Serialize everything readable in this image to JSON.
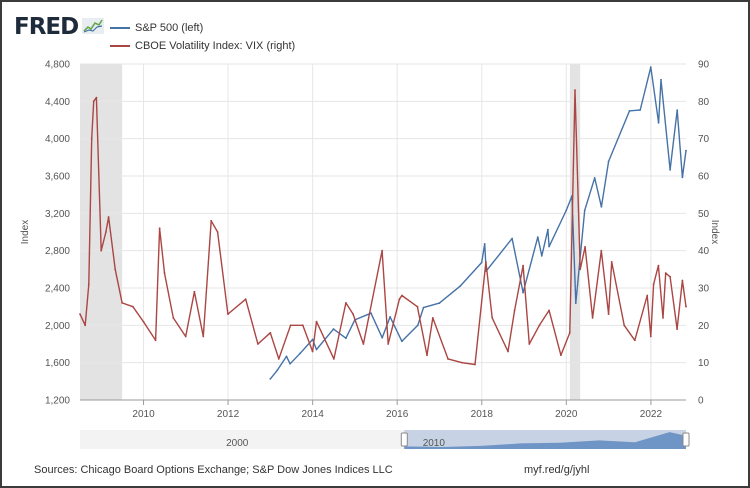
{
  "brand": {
    "name": "FRED",
    "logo_icon": "fred-chart-logo-icon"
  },
  "legend": [
    {
      "label": "S&P 500 (left)",
      "color": "#4572a7"
    },
    {
      "label": "CBOE Volatility Index: VIX (right)",
      "color": "#aa4643"
    }
  ],
  "footer": {
    "source": "Sources: Chicago Board Options Exchange; S&P Dow Jones Indices LLC",
    "link": "myf.red/g/jyhl"
  },
  "chart_data": {
    "type": "line",
    "xlim": [
      "2008-07-01",
      "2022-10-31"
    ],
    "x_ticks": [
      "2010",
      "2012",
      "2014",
      "2016",
      "2018",
      "2020",
      "2022"
    ],
    "left_axis": {
      "label": "Index",
      "lim": [
        1200,
        4800
      ],
      "ticks": [
        "1,200",
        "1,600",
        "2,000",
        "2,400",
        "2,800",
        "3,200",
        "3,600",
        "4,000",
        "4,400",
        "4,800"
      ]
    },
    "right_axis": {
      "label": "Index",
      "lim": [
        0,
        90
      ],
      "ticks": [
        "0",
        "10",
        "20",
        "30",
        "40",
        "50",
        "60",
        "70",
        "80",
        "90"
      ]
    },
    "grid": true,
    "recession_shading": [
      {
        "start": "2008-07-01",
        "end": "2009-06-30"
      },
      {
        "start": "2020-02-01",
        "end": "2020-04-30"
      }
    ],
    "series": [
      {
        "name": "S&P 500 (left)",
        "axis": "left",
        "color": "#4572a7",
        "points": [
          [
            "2012-12-31",
            1426
          ],
          [
            "2013-03-01",
            1518
          ],
          [
            "2013-05-20",
            1667
          ],
          [
            "2013-06-20",
            1588
          ],
          [
            "2013-09-15",
            1700
          ],
          [
            "2013-12-31",
            1848
          ],
          [
            "2014-02-03",
            1741
          ],
          [
            "2014-06-30",
            1960
          ],
          [
            "2014-10-15",
            1862
          ],
          [
            "2014-12-31",
            2058
          ],
          [
            "2015-05-20",
            2130
          ],
          [
            "2015-08-25",
            1867
          ],
          [
            "2015-11-01",
            2090
          ],
          [
            "2016-02-11",
            1829
          ],
          [
            "2016-06-27",
            2000
          ],
          [
            "2016-08-15",
            2190
          ],
          [
            "2016-12-31",
            2238
          ],
          [
            "2017-06-30",
            2423
          ],
          [
            "2017-12-31",
            2673
          ],
          [
            "2018-01-26",
            2872
          ],
          [
            "2018-02-08",
            2581
          ],
          [
            "2018-09-20",
            2930
          ],
          [
            "2018-12-24",
            2351
          ],
          [
            "2019-04-30",
            2945
          ],
          [
            "2019-06-03",
            2744
          ],
          [
            "2019-07-26",
            3025
          ],
          [
            "2019-08-05",
            2844
          ],
          [
            "2019-12-31",
            3230
          ],
          [
            "2020-02-19",
            3386
          ],
          [
            "2020-03-23",
            2237
          ],
          [
            "2020-06-08",
            3232
          ],
          [
            "2020-09-02",
            3580
          ],
          [
            "2020-10-30",
            3270
          ],
          [
            "2020-12-31",
            3756
          ],
          [
            "2021-06-30",
            4297
          ],
          [
            "2021-09-30",
            4307
          ],
          [
            "2021-12-31",
            4766
          ],
          [
            "2022-03-08",
            4170
          ],
          [
            "2022-03-29",
            4631
          ],
          [
            "2022-06-16",
            3666
          ],
          [
            "2022-08-16",
            4305
          ],
          [
            "2022-09-30",
            3585
          ],
          [
            "2022-10-31",
            3872
          ]
        ]
      },
      {
        "name": "CBOE Volatility Index: VIX (right)",
        "axis": "right",
        "color": "#aa4643",
        "points": [
          [
            "2008-07-01",
            23
          ],
          [
            "2008-08-15",
            20
          ],
          [
            "2008-09-15",
            31
          ],
          [
            "2008-10-10",
            70
          ],
          [
            "2008-10-27",
            80
          ],
          [
            "2008-11-20",
            81
          ],
          [
            "2008-12-31",
            40
          ],
          [
            "2009-02-10",
            45
          ],
          [
            "2009-03-05",
            49
          ],
          [
            "2009-05-01",
            35
          ],
          [
            "2009-06-30",
            26
          ],
          [
            "2009-10-01",
            25
          ],
          [
            "2009-12-31",
            21
          ],
          [
            "2010-04-15",
            16
          ],
          [
            "2010-05-20",
            46
          ],
          [
            "2010-07-01",
            34
          ],
          [
            "2010-09-15",
            22
          ],
          [
            "2010-12-31",
            17
          ],
          [
            "2011-03-16",
            29
          ],
          [
            "2011-06-01",
            17
          ],
          [
            "2011-08-08",
            48
          ],
          [
            "2011-10-03",
            45
          ],
          [
            "2011-12-31",
            23
          ],
          [
            "2012-06-01",
            27
          ],
          [
            "2012-09-15",
            15
          ],
          [
            "2012-12-31",
            18
          ],
          [
            "2013-03-14",
            11
          ],
          [
            "2013-06-24",
            20
          ],
          [
            "2013-10-08",
            20
          ],
          [
            "2013-12-31",
            13
          ],
          [
            "2014-02-03",
            21
          ],
          [
            "2014-07-03",
            11
          ],
          [
            "2014-10-15",
            26
          ],
          [
            "2014-12-16",
            23
          ],
          [
            "2015-03-15",
            15
          ],
          [
            "2015-08-24",
            40
          ],
          [
            "2015-10-15",
            15
          ],
          [
            "2016-01-20",
            27
          ],
          [
            "2016-02-11",
            28
          ],
          [
            "2016-06-24",
            25
          ],
          [
            "2016-09-15",
            12
          ],
          [
            "2016-11-04",
            22
          ],
          [
            "2017-03-15",
            11
          ],
          [
            "2017-07-15",
            10
          ],
          [
            "2017-11-03",
            9.5
          ],
          [
            "2018-02-05",
            37
          ],
          [
            "2018-04-01",
            22
          ],
          [
            "2018-08-15",
            13
          ],
          [
            "2018-10-11",
            24
          ],
          [
            "2018-12-24",
            36
          ],
          [
            "2019-02-15",
            15
          ],
          [
            "2019-05-14",
            20
          ],
          [
            "2019-08-05",
            24
          ],
          [
            "2019-11-15",
            12
          ],
          [
            "2020-01-31",
            18
          ],
          [
            "2020-03-16",
            83
          ],
          [
            "2020-04-30",
            35
          ],
          [
            "2020-06-11",
            41
          ],
          [
            "2020-08-15",
            22
          ],
          [
            "2020-10-29",
            40
          ],
          [
            "2020-12-31",
            23
          ],
          [
            "2021-01-27",
            37
          ],
          [
            "2021-05-15",
            20
          ],
          [
            "2021-08-15",
            16
          ],
          [
            "2021-11-30",
            28
          ],
          [
            "2021-12-31",
            17
          ],
          [
            "2022-01-24",
            31
          ],
          [
            "2022-03-07",
            36
          ],
          [
            "2022-04-15",
            22
          ],
          [
            "2022-05-09",
            34
          ],
          [
            "2022-06-16",
            33
          ],
          [
            "2022-08-15",
            19
          ],
          [
            "2022-09-30",
            32
          ],
          [
            "2022-10-31",
            25
          ]
        ]
      }
    ],
    "navigator": {
      "tick_labels": [
        "2000",
        "2010"
      ],
      "series_points": [
        [
          "2008-07-01",
          1200
        ],
        [
          "2010-06-01",
          1050
        ],
        [
          "2012-06-01",
          1330
        ],
        [
          "2014-06-01",
          1950
        ],
        [
          "2016-06-01",
          2100
        ],
        [
          "2018-06-01",
          2700
        ],
        [
          "2020-03-23",
          2237
        ],
        [
          "2021-12-31",
          4766
        ],
        [
          "2022-10-31",
          3872
        ]
      ]
    }
  }
}
